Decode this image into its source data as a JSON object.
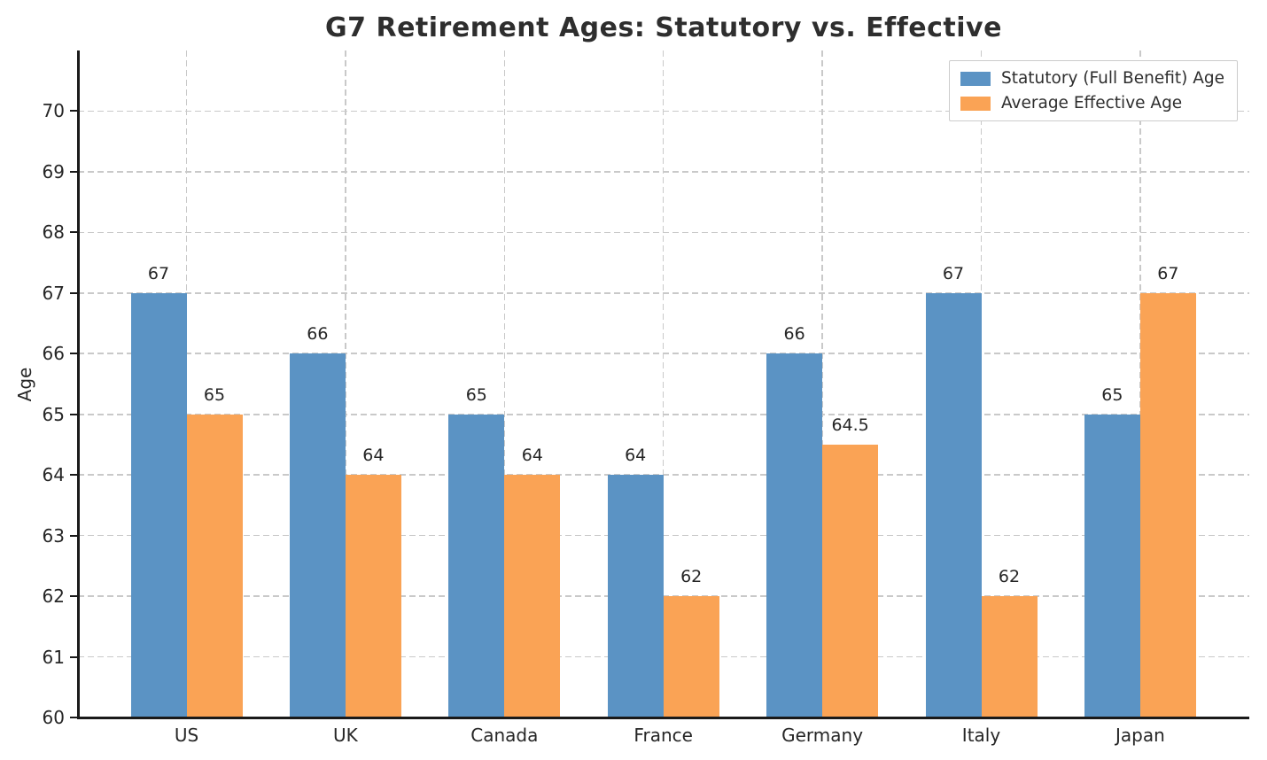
{
  "title": "G7 Retirement Ages: Statutory vs. Effective",
  "chart_data": {
    "type": "bar",
    "title": "G7 Retirement Ages: Statutory vs. Effective",
    "xlabel": "",
    "ylabel": "Age",
    "categories": [
      "US",
      "UK",
      "Canada",
      "France",
      "Germany",
      "Italy",
      "Japan"
    ],
    "series": [
      {
        "name": "Statutory (Full Benefit) Age",
        "color": "#5b93c4",
        "values": [
          67,
          66,
          65,
          64,
          66,
          67,
          65
        ]
      },
      {
        "name": "Average Effective Age",
        "color": "#faa355",
        "values": [
          65,
          64,
          64,
          62,
          64.5,
          62,
          67
        ]
      }
    ],
    "ylim": [
      60,
      71
    ],
    "yticks": [
      60,
      61,
      62,
      63,
      64,
      65,
      66,
      67,
      68,
      69,
      70
    ],
    "grid": "dashed",
    "grid_color": "#c9c9c9",
    "legend_position": "upper right",
    "bar_labels_shown": true
  },
  "colors": {
    "statutory": "#5b93c4",
    "effective": "#faa355",
    "title_text": "#2e2e2e",
    "tick_text": "#262626",
    "spine": "#1a1a1a",
    "grid": "#c9c9c9",
    "legend_border": "#cccccc",
    "background": "#ffffff"
  }
}
